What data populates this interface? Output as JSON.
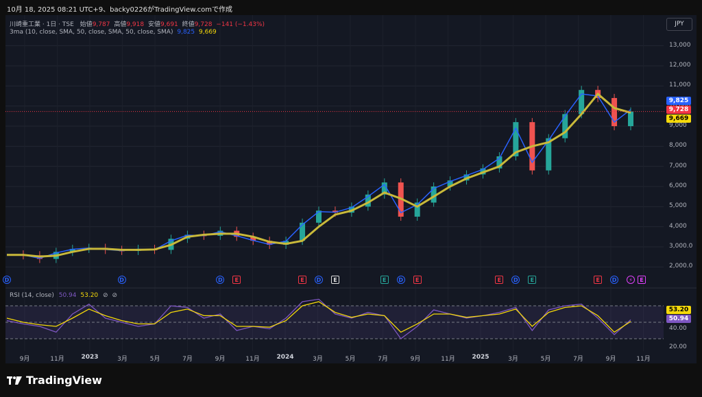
{
  "header": {
    "text": "10月 18, 2025 08:21 UTC+9、backy0226がTradingView.comで作成"
  },
  "legend": {
    "symbol": "川崎重工業 · 1日 · TSE",
    "open_label": "始値",
    "open": "9,787",
    "high_label": "高値",
    "high": "9,918",
    "low_label": "安値",
    "low": "9,691",
    "close_label": "終値",
    "close": "9,728",
    "change": "−141 (−1.43%)",
    "ma_label": "3ma (10, close, SMA, 50, close, SMA, 50, close, SMA)",
    "ma_fast": "9,825",
    "ma_slow": "9,669"
  },
  "currency": "JPY",
  "price_tags": {
    "ma_fast": "9,825",
    "close": "9,728",
    "ma_slow": "9,669"
  },
  "rsi_legend": {
    "label": "RSI (14, close)",
    "v1": "50.94",
    "v2": "53.20",
    "icon1": "⊘",
    "icon2": "⊘"
  },
  "rsi_tags": {
    "v1": "53.20",
    "v2": "50.94"
  },
  "footer": {
    "brand": "TradingView"
  },
  "colors": {
    "background": "#141823",
    "up": "#26a69a",
    "down": "#ef5350",
    "ma_fast": "#2962ff",
    "ma_slow": "#c9b93a",
    "rsi": "#7e57c2",
    "rsi_ma": "#f5d90a"
  },
  "events": [
    {
      "type": "D",
      "color": "#2962ff",
      "date": "2022-08"
    },
    {
      "type": "D",
      "color": "#2962ff",
      "date": "2023-03"
    },
    {
      "type": "D",
      "color": "#2962ff",
      "date": "2023-09"
    },
    {
      "type": "E",
      "color": "#f23645",
      "date": "2023-10"
    },
    {
      "type": "E",
      "color": "#f23645",
      "date": "2024-02"
    },
    {
      "type": "D",
      "color": "#2962ff",
      "date": "2024-03"
    },
    {
      "type": "E",
      "color": "#e0e0e0",
      "date": "2024-04"
    },
    {
      "type": "E",
      "color": "#26a69a",
      "date": "2024-07"
    },
    {
      "type": "D",
      "color": "#2962ff",
      "date": "2024-08"
    },
    {
      "type": "E",
      "color": "#f23645",
      "date": "2024-09"
    },
    {
      "type": "E",
      "color": "#f23645",
      "date": "2025-02"
    },
    {
      "type": "D",
      "color": "#2962ff",
      "date": "2025-03"
    },
    {
      "type": "E",
      "color": "#26a69a",
      "date": "2025-04"
    },
    {
      "type": "E",
      "color": "#f23645",
      "date": "2025-08"
    },
    {
      "type": "D",
      "color": "#2962ff",
      "date": "2025-09"
    },
    {
      "type": "⚡",
      "color": "#e040fb",
      "date": "2025-10"
    },
    {
      "type": "E",
      "color": "#e040fb",
      "date": "2025-10"
    }
  ],
  "chart_data": {
    "type": "line",
    "title": "川崎重工業 · 1日 · TSE",
    "y_axis": {
      "ticks": [
        "2,000.0",
        "3,000.0",
        "4,000",
        "5,000",
        "6,000",
        "7,000",
        "8,000",
        "9,000",
        "10,000",
        "11,000",
        "12,000",
        "13,000"
      ],
      "ylim": [
        1500,
        13500
      ]
    },
    "x_axis": {
      "ticks": [
        {
          "label": "9月",
          "bold": false
        },
        {
          "label": "11月",
          "bold": false
        },
        {
          "label": "2023",
          "bold": true
        },
        {
          "label": "3月",
          "bold": false
        },
        {
          "label": "5月",
          "bold": false
        },
        {
          "label": "7月",
          "bold": false
        },
        {
          "label": "9月",
          "bold": false
        },
        {
          "label": "11月",
          "bold": false
        },
        {
          "label": "2024",
          "bold": true
        },
        {
          "label": "3月",
          "bold": false
        },
        {
          "label": "5月",
          "bold": false
        },
        {
          "label": "7月",
          "bold": false
        },
        {
          "label": "9月",
          "bold": false
        },
        {
          "label": "11月",
          "bold": false
        },
        {
          "label": "2025",
          "bold": true
        },
        {
          "label": "3月",
          "bold": false
        },
        {
          "label": "5月",
          "bold": false
        },
        {
          "label": "7月",
          "bold": false
        },
        {
          "label": "9月",
          "bold": false
        },
        {
          "label": "11月",
          "bold": false
        }
      ]
    },
    "dates": [
      "2022-08",
      "2022-09",
      "2022-10",
      "2022-11",
      "2022-12",
      "2023-01",
      "2023-02",
      "2023-03",
      "2023-04",
      "2023-05",
      "2023-06",
      "2023-07",
      "2023-08",
      "2023-09",
      "2023-10",
      "2023-11",
      "2023-12",
      "2024-01",
      "2024-02",
      "2024-03",
      "2024-04",
      "2024-05",
      "2024-06",
      "2024-07",
      "2024-08",
      "2024-09",
      "2024-10",
      "2024-11",
      "2024-12",
      "2025-01",
      "2025-02",
      "2025-03",
      "2025-04",
      "2025-05",
      "2025-06",
      "2025-07",
      "2025-08",
      "2025-09",
      "2025-10"
    ],
    "series": [
      {
        "name": "Close",
        "values": [
          2620,
          2580,
          2400,
          2750,
          2900,
          2950,
          2850,
          2800,
          2900,
          2850,
          3400,
          3600,
          3550,
          3800,
          3500,
          3300,
          3100,
          3300,
          4200,
          4800,
          4700,
          5000,
          5600,
          6200,
          4500,
          5200,
          6000,
          6300,
          6600,
          6900,
          7500,
          9200,
          6800,
          8400,
          9600,
          10800,
          10400,
          9000,
          9728
        ]
      },
      {
        "name": "SMA 10",
        "values": [
          2620,
          2600,
          2430,
          2700,
          2880,
          2940,
          2870,
          2810,
          2880,
          2860,
          3300,
          3580,
          3560,
          3750,
          3550,
          3320,
          3120,
          3280,
          4100,
          4750,
          4720,
          4950,
          5500,
          6100,
          4700,
          5100,
          5900,
          6250,
          6550,
          6850,
          7400,
          8900,
          7200,
          8300,
          9500,
          10600,
          10500,
          9200,
          9825
        ]
      },
      {
        "name": "SMA 50",
        "values": [
          2600,
          2600,
          2520,
          2560,
          2750,
          2900,
          2900,
          2850,
          2850,
          2870,
          3100,
          3500,
          3600,
          3650,
          3650,
          3500,
          3250,
          3150,
          3300,
          4000,
          4600,
          4800,
          5200,
          5700,
          5400,
          5000,
          5500,
          6000,
          6400,
          6700,
          7000,
          7700,
          8000,
          8200,
          8700,
          9600,
          10600,
          9900,
          9669
        ]
      }
    ],
    "rsi": {
      "ylim": [
        15,
        90
      ],
      "ticks": [
        "20.00",
        "40.00"
      ],
      "bands": [
        70,
        50,
        30
      ],
      "values": [
        52,
        48,
        45,
        38,
        60,
        72,
        55,
        50,
        45,
        48,
        70,
        68,
        55,
        60,
        40,
        45,
        42,
        55,
        75,
        78,
        60,
        55,
        62,
        58,
        30,
        45,
        65,
        60,
        55,
        58,
        62,
        68,
        40,
        65,
        70,
        72,
        55,
        35,
        53
      ],
      "ma_values": [
        55,
        50,
        47,
        45,
        55,
        66,
        58,
        52,
        48,
        48,
        62,
        66,
        58,
        58,
        45,
        45,
        44,
        52,
        70,
        75,
        62,
        56,
        60,
        58,
        38,
        48,
        60,
        60,
        56,
        58,
        60,
        66,
        45,
        62,
        68,
        70,
        58,
        38,
        51
      ]
    }
  }
}
